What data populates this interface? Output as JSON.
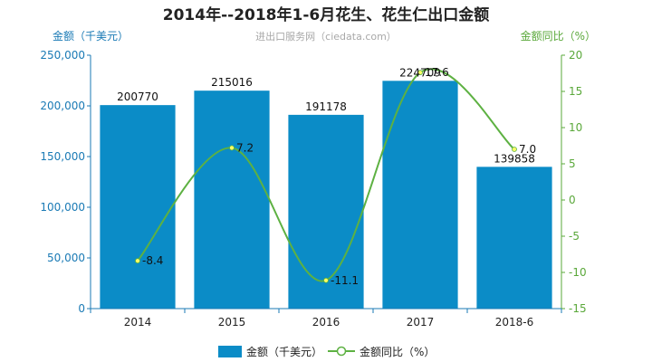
{
  "chart_data": {
    "type": "bar+line",
    "title": "2014年--2018年1-6月花生、花生仁出口金额",
    "source_note": "进出口服务网（ciedata.com）",
    "categories": [
      "2014",
      "2015",
      "2016",
      "2017",
      "2018-6"
    ],
    "y_left": {
      "label": "金额（千美元）",
      "range": [
        0,
        250000
      ],
      "ticks": [
        0,
        50000,
        100000,
        150000,
        200000,
        250000
      ],
      "tick_labels": [
        "0",
        "50,000",
        "100,000",
        "150,000",
        "200,000",
        "250,000"
      ]
    },
    "y_right": {
      "label": "金额同比（%）",
      "range": [
        -15,
        20
      ],
      "ticks": [
        -15,
        -10,
        -5,
        0,
        5,
        10,
        15,
        20
      ],
      "tick_labels": [
        "-15",
        "-10",
        "-5",
        "0",
        "5",
        "10",
        "15",
        "20"
      ]
    },
    "series": [
      {
        "name": "金额（千美元）",
        "type": "bar",
        "axis": "left",
        "color": "#0b8cc7",
        "values": [
          200770,
          215016,
          191178,
          224709,
          139858
        ],
        "labels": [
          "200770",
          "215016",
          "191178",
          "224709",
          "139858"
        ]
      },
      {
        "name": "金额同比（%）",
        "type": "line",
        "axis": "right",
        "color": "#5db142",
        "marker_fill": "#ffff66",
        "values": [
          -8.4,
          7.2,
          -11.1,
          17.6,
          7.0
        ],
        "labels": [
          "-8.4",
          "7.2",
          "-11.1",
          "17.6",
          "7.0"
        ]
      }
    ],
    "legend": {
      "position": "bottom"
    },
    "grid": false
  }
}
